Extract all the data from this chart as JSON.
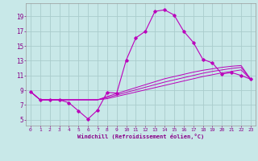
{
  "xlabel": "Windchill (Refroidissement éolien,°C)",
  "background_color": "#c8e8e8",
  "line_color": "#bb00bb",
  "grid_color": "#aacccc",
  "x_ticks": [
    0,
    1,
    2,
    3,
    4,
    5,
    6,
    7,
    8,
    9,
    10,
    11,
    12,
    13,
    14,
    15,
    16,
    17,
    18,
    19,
    20,
    21,
    22,
    23
  ],
  "y_ticks": [
    5,
    7,
    9,
    11,
    13,
    15,
    17,
    19
  ],
  "ylim": [
    4.2,
    20.8
  ],
  "xlim": [
    -0.5,
    23.5
  ],
  "main_line": [
    8.8,
    7.7,
    7.7,
    7.7,
    7.3,
    6.2,
    5.1,
    6.3,
    8.7,
    8.6,
    13.1,
    16.1,
    17.0,
    19.7,
    19.9,
    19.2,
    17.0,
    15.5,
    13.2,
    12.7,
    11.2,
    11.4,
    11.0,
    10.5
  ],
  "line2": [
    8.8,
    7.7,
    7.7,
    7.7,
    7.7,
    7.7,
    7.7,
    7.7,
    7.85,
    8.15,
    8.45,
    8.75,
    9.05,
    9.35,
    9.65,
    9.95,
    10.25,
    10.55,
    10.85,
    11.1,
    11.35,
    11.55,
    11.75,
    10.5
  ],
  "line3": [
    8.8,
    7.7,
    7.7,
    7.7,
    7.7,
    7.7,
    7.7,
    7.7,
    8.0,
    8.35,
    8.7,
    9.05,
    9.4,
    9.75,
    10.1,
    10.4,
    10.7,
    11.0,
    11.3,
    11.55,
    11.75,
    11.95,
    12.1,
    10.5
  ],
  "line4": [
    8.8,
    7.7,
    7.7,
    7.7,
    7.7,
    7.7,
    7.7,
    7.7,
    8.15,
    8.55,
    8.95,
    9.35,
    9.75,
    10.15,
    10.55,
    10.85,
    11.15,
    11.45,
    11.7,
    11.9,
    12.1,
    12.25,
    12.35,
    10.5
  ]
}
